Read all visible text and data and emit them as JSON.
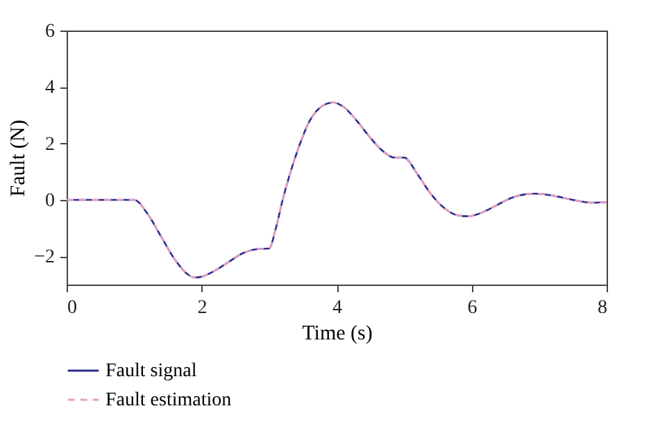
{
  "chart_data": {
    "type": "line",
    "xlabel": "Time (s)",
    "ylabel": "Fault (N)",
    "x": [
      0,
      1,
      1.2,
      1.4,
      1.6,
      1.8,
      1.9,
      2.0,
      2.2,
      2.4,
      2.6,
      2.8,
      3.0,
      3.1,
      3.2,
      3.4,
      3.6,
      3.8,
      3.95,
      4.1,
      4.3,
      4.5,
      4.7,
      4.85,
      5.0,
      5.2,
      5.4,
      5.6,
      5.8,
      5.95,
      6.2,
      6.4,
      6.6,
      6.8,
      6.95,
      7.2,
      7.5,
      7.8,
      8.0
    ],
    "series": [
      {
        "name": "Fault signal",
        "color": "#2b2b8f",
        "line_style": "solid",
        "values": [
          0,
          0,
          -0.5,
          -1.3,
          -2.1,
          -2.65,
          -2.75,
          -2.72,
          -2.5,
          -2.2,
          -1.9,
          -1.75,
          -1.72,
          -1.0,
          0.0,
          1.6,
          2.8,
          3.35,
          3.45,
          3.3,
          2.8,
          2.2,
          1.7,
          1.5,
          1.5,
          0.9,
          0.2,
          -0.3,
          -0.55,
          -0.58,
          -0.4,
          -0.15,
          0.08,
          0.2,
          0.22,
          0.15,
          0.0,
          -0.1,
          -0.08
        ]
      },
      {
        "name": "Fault estimation",
        "color": "#e8a0c0",
        "line_style": "dashed",
        "values": [
          0,
          0,
          -0.5,
          -1.3,
          -2.1,
          -2.65,
          -2.75,
          -2.72,
          -2.5,
          -2.2,
          -1.9,
          -1.75,
          -1.72,
          -1.0,
          0.0,
          1.6,
          2.8,
          3.35,
          3.45,
          3.3,
          2.8,
          2.2,
          1.7,
          1.5,
          1.5,
          0.9,
          0.2,
          -0.3,
          -0.55,
          -0.58,
          -0.4,
          -0.15,
          0.08,
          0.2,
          0.22,
          0.15,
          0.0,
          -0.1,
          -0.08
        ]
      }
    ],
    "xlim": [
      0,
      8
    ],
    "xticks": [
      0,
      2,
      4,
      6,
      8
    ],
    "ylim": [
      -3,
      6
    ],
    "yticks": [
      -2,
      0,
      2,
      4,
      6
    ],
    "grid": false,
    "legend": "bottom left",
    "marker": "none"
  }
}
